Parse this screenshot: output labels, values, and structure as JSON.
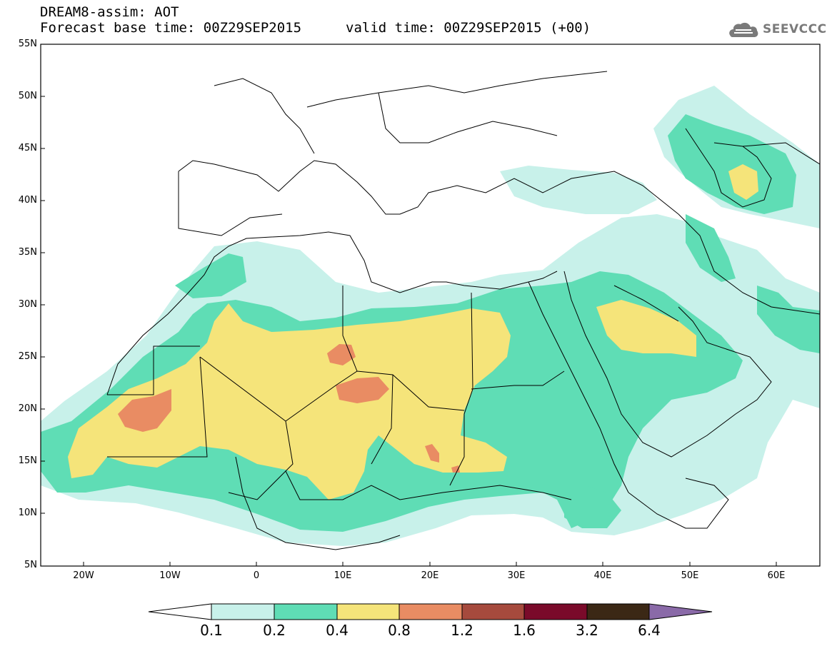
{
  "header": {
    "line1": "DREAM8-assim: AOT",
    "line2_base": "Forecast base time: 00Z29SEP2015",
    "line2_valid": "valid time: 00Z29SEP2015 (+00)"
  },
  "logo": {
    "text": "SEEVCCC",
    "icon": "cloud-icon"
  },
  "map": {
    "lon_range": [
      -25,
      65
    ],
    "lat_range": [
      5,
      55
    ],
    "lat_ticks": [
      "55N",
      "50N",
      "45N",
      "40N",
      "35N",
      "30N",
      "25N",
      "20N",
      "15N",
      "10N",
      "5N"
    ],
    "lon_ticks": [
      "20W",
      "10W",
      "0",
      "10E",
      "20E",
      "30E",
      "40E",
      "50E",
      "60E"
    ]
  },
  "colorbar": {
    "labels": [
      "0.1",
      "0.2",
      "0.4",
      "0.8",
      "1.2",
      "1.6",
      "3.2",
      "6.4"
    ],
    "colors": [
      "#ffffff",
      "#c8f1ea",
      "#5fddb5",
      "#f5e47a",
      "#e98c63",
      "#a64a3d",
      "#7a0a2a",
      "#3b2815",
      "#8a6aa8"
    ]
  },
  "colors": {
    "aot_0_1": "#c8f1ea",
    "aot_0_2": "#5fddb5",
    "aot_0_4": "#f5e47a",
    "aot_0_8": "#e98c63",
    "border": "#000000"
  }
}
